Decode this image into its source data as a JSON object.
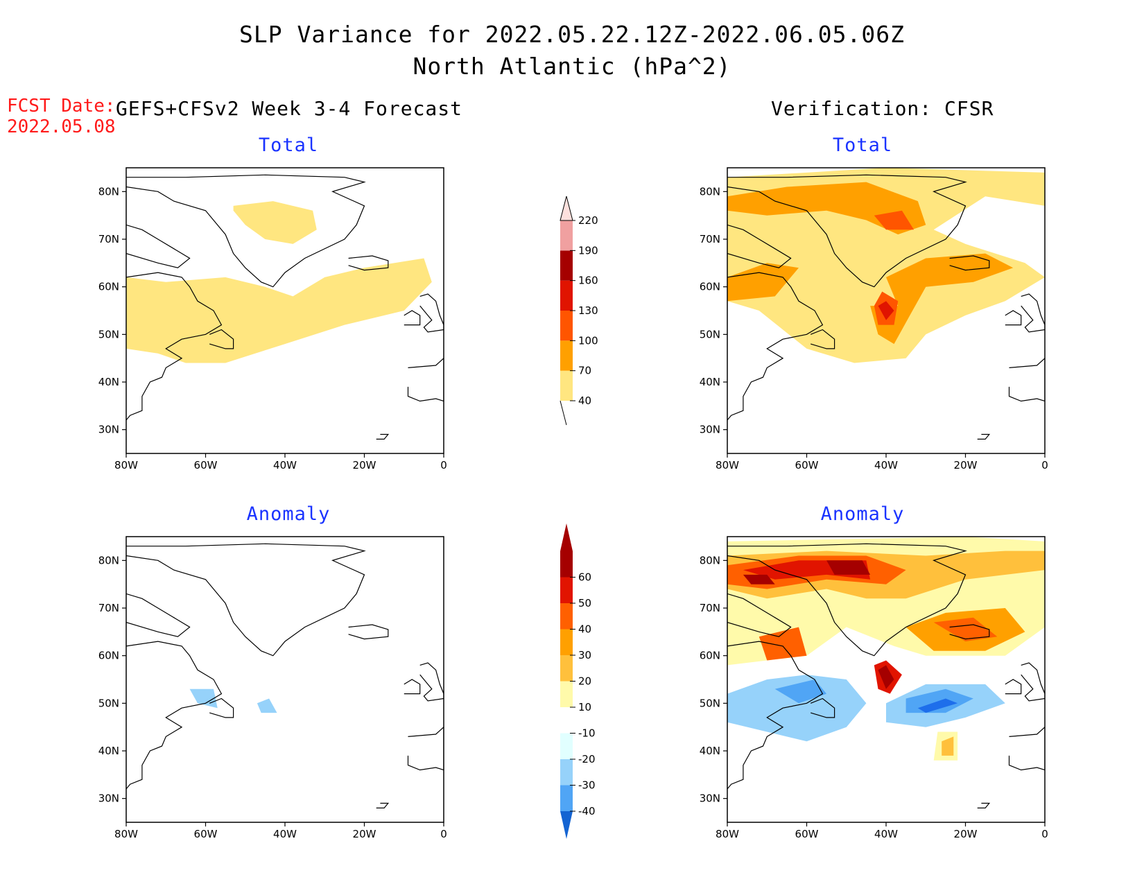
{
  "header": {
    "title_line1": "SLP Variance for 2022.05.22.12Z-2022.06.05.06Z",
    "title_line2": "North Atlantic (hPa^2)",
    "fcst_label": "FCST Date:",
    "fcst_date": "2022.05.08",
    "left_subtitle": "GEFS+CFSv2 Week 3-4 Forecast",
    "right_subtitle": "Verification: CFSR"
  },
  "panels": {
    "fcst_total": {
      "title": "Total"
    },
    "verif_total": {
      "title": "Total"
    },
    "fcst_anom": {
      "title": "Anomaly"
    },
    "verif_anom": {
      "title": "Anomaly"
    }
  },
  "axes": {
    "lat_labels": [
      "80N",
      "70N",
      "60N",
      "50N",
      "40N",
      "30N"
    ],
    "lon_labels": [
      "80W",
      "60W",
      "40W",
      "20W",
      "0"
    ]
  },
  "chart_data": {
    "type": "heatmap",
    "domain": {
      "lon_range": [
        -80,
        0
      ],
      "lat_range": [
        25,
        85
      ]
    },
    "total_colorbar": {
      "levels": [
        40,
        70,
        100,
        130,
        160,
        190,
        220
      ],
      "labels": [
        "40",
        "70",
        "100",
        "130",
        "160",
        "190",
        "220"
      ],
      "colors": [
        "#ffe680",
        "#ffa000",
        "#ff5500",
        "#e01400",
        "#a50000",
        "#f0a0a0",
        "#fde0dd"
      ]
    },
    "anomaly_colorbar": {
      "levels": [
        -40,
        -30,
        -20,
        -10,
        10,
        20,
        30,
        40,
        50,
        60
      ],
      "labels": [
        "-40",
        "-30",
        "-20",
        "-10",
        "10",
        "20",
        "30",
        "40",
        "50",
        "60"
      ],
      "colors": [
        "#1464d2",
        "#1e6eeb",
        "#50a5f5",
        "#96d2fa",
        "#e1ffff",
        "#ffffff",
        "#fffaaa",
        "#ffc03c",
        "#ffa000",
        "#ff6000",
        "#e11400",
        "#a50000"
      ]
    },
    "panels": {
      "fcst_total": [
        {
          "polygon": [
            [
              -80,
              62
            ],
            [
              -70,
              61
            ],
            [
              -55,
              62
            ],
            [
              -45,
              60
            ],
            [
              -38,
              58
            ],
            [
              -30,
              62
            ],
            [
              -20,
              64
            ],
            [
              -5,
              66
            ],
            [
              -3,
              61
            ],
            [
              -10,
              55
            ],
            [
              -25,
              52
            ],
            [
              -40,
              48
            ],
            [
              -55,
              44
            ],
            [
              -65,
              44
            ],
            [
              -72,
              46
            ],
            [
              -80,
              47
            ]
          ],
          "level": 40
        },
        {
          "polygon": [
            [
              -53,
              77
            ],
            [
              -43,
              78
            ],
            [
              -33,
              76
            ],
            [
              -32,
              72
            ],
            [
              -38,
              69
            ],
            [
              -45,
              70
            ],
            [
              -50,
              73
            ],
            [
              -53,
              76
            ]
          ],
          "level": 40
        }
      ],
      "verif_total": [
        {
          "polygon": [
            [
              -80,
              83
            ],
            [
              -40,
              85
            ],
            [
              0,
              84
            ],
            [
              0,
              77
            ],
            [
              -15,
              79
            ],
            [
              -28,
              72
            ],
            [
              -20,
              69
            ],
            [
              -5,
              65
            ],
            [
              0,
              62
            ],
            [
              -10,
              57
            ],
            [
              -20,
              54
            ],
            [
              -30,
              50
            ],
            [
              -35,
              45
            ],
            [
              -48,
              44
            ],
            [
              -60,
              47
            ],
            [
              -72,
              55
            ],
            [
              -80,
              57
            ]
          ],
          "level": 40
        },
        {
          "polygon": [
            [
              -80,
              79
            ],
            [
              -65,
              81
            ],
            [
              -45,
              82
            ],
            [
              -32,
              78
            ],
            [
              -30,
              73
            ],
            [
              -37,
              71
            ],
            [
              -45,
              74
            ],
            [
              -55,
              76
            ],
            [
              -70,
              75
            ],
            [
              -80,
              76
            ]
          ],
          "level": 70
        },
        {
          "polygon": [
            [
              -43,
              75
            ],
            [
              -36,
              76
            ],
            [
              -33,
              72
            ],
            [
              -40,
              72
            ]
          ],
          "level": 100
        },
        {
          "polygon": [
            [
              -80,
              62
            ],
            [
              -70,
              65
            ],
            [
              -62,
              64
            ],
            [
              -68,
              58
            ],
            [
              -80,
              57
            ]
          ],
          "level": 70
        },
        {
          "polygon": [
            [
              -37,
              56
            ],
            [
              -40,
              62
            ],
            [
              -30,
              66
            ],
            [
              -15,
              67
            ],
            [
              -8,
              64
            ],
            [
              -18,
              61
            ],
            [
              -30,
              60
            ],
            [
              -34,
              54
            ],
            [
              -38,
              48
            ],
            [
              -42,
              50
            ],
            [
              -44,
              56
            ]
          ],
          "level": 70
        },
        {
          "polygon": [
            [
              -43,
              56
            ],
            [
              -41,
              59
            ],
            [
              -37,
              57
            ],
            [
              -38,
              52
            ],
            [
              -42,
              52
            ]
          ],
          "level": 100
        },
        {
          "polygon": [
            [
              -42,
              56
            ],
            [
              -40,
              57
            ],
            [
              -38,
              55
            ],
            [
              -40,
              53
            ]
          ],
          "level": 130
        }
      ],
      "fcst_anom": [
        {
          "polygon": [
            [
              -64,
              53
            ],
            [
              -58,
              53
            ],
            [
              -57,
              49
            ],
            [
              -62,
              50
            ]
          ],
          "level": -10
        },
        {
          "polygon": [
            [
              -47,
              50
            ],
            [
              -44,
              51
            ],
            [
              -42,
              48
            ],
            [
              -46,
              48
            ]
          ],
          "level": -10
        }
      ],
      "verif_anom": [
        {
          "polygon": [
            [
              -80,
              84
            ],
            [
              -20,
              85
            ],
            [
              0,
              84
            ],
            [
              0,
              66
            ],
            [
              -10,
              60
            ],
            [
              -30,
              60
            ],
            [
              -38,
              62
            ],
            [
              -50,
              66
            ],
            [
              -60,
              60
            ],
            [
              -80,
              58
            ]
          ],
          "level": 10
        },
        {
          "polygon": [
            [
              -80,
              81
            ],
            [
              -55,
              82
            ],
            [
              -30,
              81
            ],
            [
              -10,
              82
            ],
            [
              0,
              82
            ],
            [
              0,
              78
            ],
            [
              -20,
              76
            ],
            [
              -35,
              72
            ],
            [
              -45,
              72
            ],
            [
              -55,
              74
            ],
            [
              -70,
              72
            ],
            [
              -80,
              74
            ]
          ],
          "level": 20
        },
        {
          "polygon": [
            [
              -80,
              79
            ],
            [
              -62,
              81
            ],
            [
              -45,
              81
            ],
            [
              -35,
              78
            ],
            [
              -40,
              75
            ],
            [
              -55,
              76
            ],
            [
              -70,
              74
            ],
            [
              -80,
              75
            ]
          ],
          "level": 40
        },
        {
          "polygon": [
            [
              -76,
              78
            ],
            [
              -62,
              80
            ],
            [
              -45,
              80
            ],
            [
              -44,
              76
            ],
            [
              -55,
              77
            ],
            [
              -68,
              76
            ]
          ],
          "level": 50
        },
        {
          "polygon": [
            [
              -76,
              77
            ],
            [
              -70,
              77
            ],
            [
              -68,
              75
            ],
            [
              -74,
              75
            ]
          ],
          "level": 60
        },
        {
          "polygon": [
            [
              -55,
              80
            ],
            [
              -46,
              80
            ],
            [
              -44,
              77
            ],
            [
              -53,
              77
            ]
          ],
          "level": 60
        },
        {
          "polygon": [
            [
              -35,
              66
            ],
            [
              -25,
              69
            ],
            [
              -10,
              70
            ],
            [
              -5,
              65
            ],
            [
              -15,
              61
            ],
            [
              -28,
              61
            ]
          ],
          "level": 30
        },
        {
          "polygon": [
            [
              -28,
              67
            ],
            [
              -18,
              68
            ],
            [
              -12,
              64
            ],
            [
              -20,
              63
            ]
          ],
          "level": 40
        },
        {
          "polygon": [
            [
              -72,
              64
            ],
            [
              -62,
              66
            ],
            [
              -60,
              60
            ],
            [
              -70,
              59
            ]
          ],
          "level": 40
        },
        {
          "polygon": [
            [
              -43,
              58
            ],
            [
              -40,
              59
            ],
            [
              -36,
              56
            ],
            [
              -39,
              52
            ],
            [
              -42,
              53
            ]
          ],
          "level": 50
        },
        {
          "polygon": [
            [
              -42,
              57
            ],
            [
              -40,
              58
            ],
            [
              -38,
              55
            ],
            [
              -40,
              53
            ]
          ],
          "level": 60
        },
        {
          "polygon": [
            [
              -80,
              52
            ],
            [
              -70,
              55
            ],
            [
              -60,
              56
            ],
            [
              -50,
              55
            ],
            [
              -45,
              50
            ],
            [
              -50,
              45
            ],
            [
              -60,
              42
            ],
            [
              -70,
              44
            ],
            [
              -80,
              46
            ]
          ],
          "level": -10
        },
        {
          "polygon": [
            [
              -40,
              50
            ],
            [
              -30,
              54
            ],
            [
              -15,
              54
            ],
            [
              -10,
              50
            ],
            [
              -20,
              47
            ],
            [
              -30,
              45
            ],
            [
              -40,
              46
            ]
          ],
          "level": -10
        },
        {
          "polygon": [
            [
              -68,
              53
            ],
            [
              -58,
              55
            ],
            [
              -55,
              52
            ],
            [
              -62,
              50
            ]
          ],
          "level": -20
        },
        {
          "polygon": [
            [
              -35,
              51
            ],
            [
              -25,
              53
            ],
            [
              -18,
              51
            ],
            [
              -25,
              48
            ],
            [
              -35,
              48
            ]
          ],
          "level": -20
        },
        {
          "polygon": [
            [
              -32,
              49
            ],
            [
              -25,
              51
            ],
            [
              -22,
              50
            ],
            [
              -30,
              48
            ]
          ],
          "level": -30
        },
        {
          "polygon": [
            [
              -27,
              44
            ],
            [
              -22,
              44
            ],
            [
              -22,
              38
            ],
            [
              -28,
              38
            ]
          ],
          "level": 10
        },
        {
          "polygon": [
            [
              -26,
              42
            ],
            [
              -23,
              43
            ],
            [
              -23,
              39
            ],
            [
              -26,
              39
            ]
          ],
          "level": 20
        }
      ]
    }
  }
}
